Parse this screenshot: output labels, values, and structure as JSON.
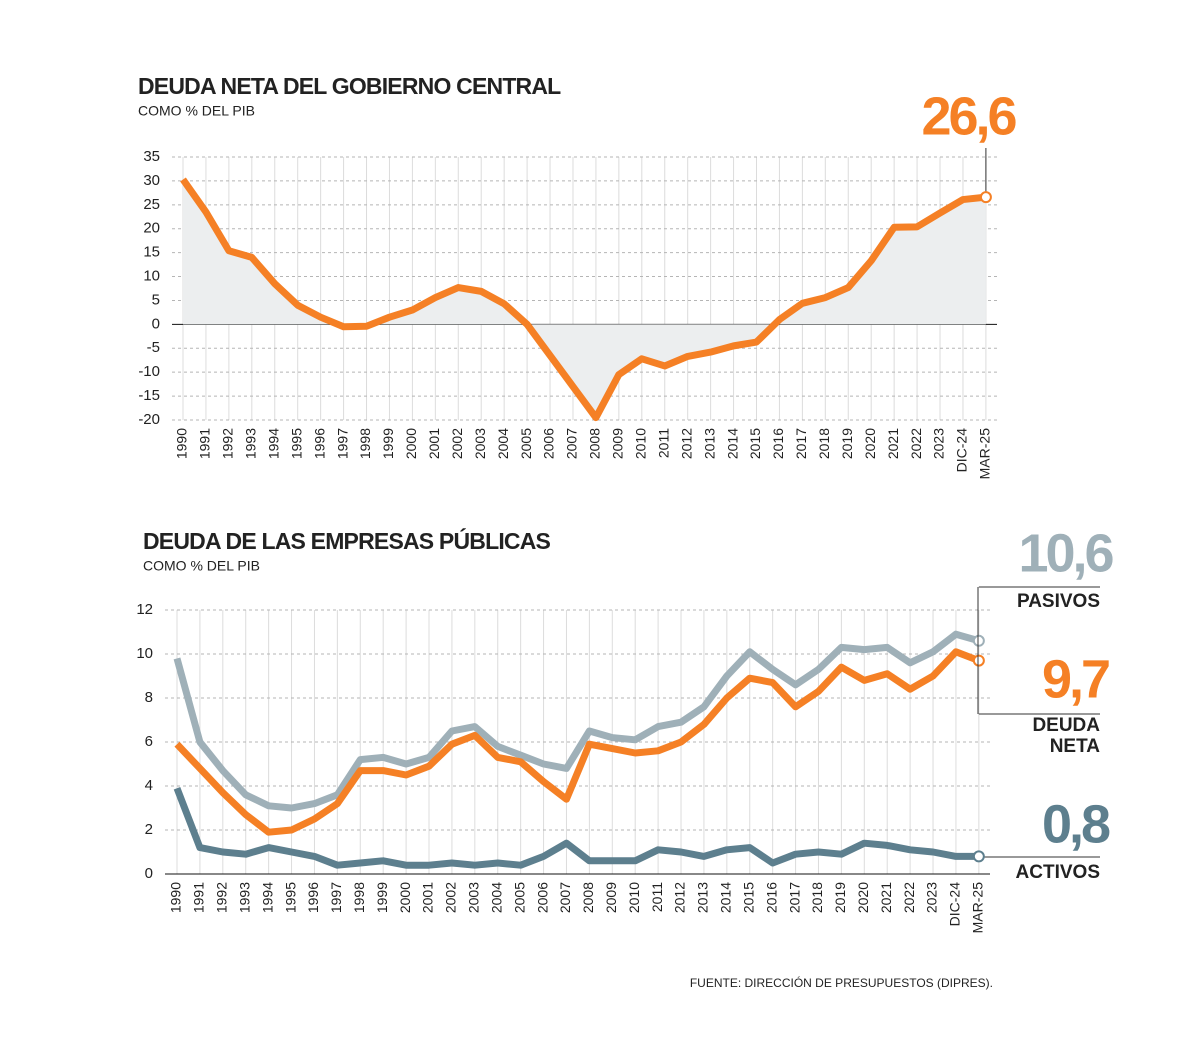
{
  "charts": [
    {
      "chart_data": {
        "type": "line",
        "title": "DEUDA NETA DEL GOBIERNO CENTRAL",
        "subtitle": "COMO % DEL PIB",
        "categories": [
          "1990",
          "1991",
          "1992",
          "1993",
          "1994",
          "1995",
          "1996",
          "1997",
          "1998",
          "1999",
          "2000",
          "2001",
          "2002",
          "2003",
          "2004",
          "2005",
          "2006",
          "2007",
          "2008",
          "2009",
          "2010",
          "2011",
          "2012",
          "2013",
          "2014",
          "2015",
          "2016",
          "2017",
          "2018",
          "2019",
          "2020",
          "2021",
          "2022",
          "2023",
          "DIC-24",
          "MAR-25"
        ],
        "values": [
          30.3,
          23.5,
          15.4,
          14,
          8.5,
          4,
          1.5,
          -0.5,
          -0.4,
          1.5,
          3,
          5.6,
          7.7,
          6.9,
          4.3,
          0,
          -6.5,
          -13,
          -19.5,
          -10.5,
          -7.2,
          -8.7,
          -6.7,
          -5.8,
          -4.5,
          -3.7,
          1,
          4.4,
          5.6,
          7.7,
          13.3,
          20.3,
          20.4,
          23.3,
          26.1,
          26.6
        ],
        "value_labels": [
          null,
          null,
          null,
          null,
          null,
          null,
          null,
          null,
          null,
          null,
          null,
          null,
          null,
          null,
          null,
          null,
          null,
          null,
          null,
          null,
          null,
          null,
          null,
          null,
          null,
          null,
          null,
          null,
          null,
          null,
          null,
          null,
          null,
          null,
          null,
          "26,6"
        ],
        "color": "#f58025",
        "area_color": "#eceeef",
        "ylim": [
          -20,
          35
        ],
        "yticks": [
          -20,
          -15,
          -10,
          -5,
          0,
          5,
          10,
          15,
          20,
          25,
          30,
          35
        ],
        "grid": true
      }
    },
    {
      "chart_data": {
        "type": "line",
        "title": "DEUDA DE LAS EMPRESAS PÚBLICAS",
        "subtitle": "COMO % DEL PIB",
        "categories": [
          "1990",
          "1991",
          "1992",
          "1993",
          "1994",
          "1995",
          "1996",
          "1997",
          "1998",
          "1999",
          "2000",
          "2001",
          "2002",
          "2003",
          "2004",
          "2005",
          "2006",
          "2007",
          "2008",
          "2009",
          "2010",
          "2011",
          "2012",
          "2013",
          "2014",
          "2015",
          "2016",
          "2017",
          "2018",
          "2019",
          "2020",
          "2021",
          "2022",
          "2023",
          "DIC-24",
          "MAR-25"
        ],
        "series": [
          {
            "name": "PASIVOS",
            "color": "#9fb0b8",
            "values": [
              9.8,
              6.0,
              4.7,
              3.6,
              3.1,
              3.0,
              3.2,
              3.6,
              5.2,
              5.3,
              5.0,
              5.3,
              6.5,
              6.7,
              5.8,
              5.4,
              5.0,
              4.8,
              6.5,
              6.2,
              6.1,
              6.7,
              6.9,
              7.6,
              9.0,
              10.1,
              9.3,
              8.6,
              9.3,
              10.3,
              10.2,
              10.3,
              9.6,
              10.1,
              10.9,
              10.6
            ],
            "value_labels": [
              null,
              null,
              null,
              null,
              null,
              null,
              null,
              null,
              null,
              null,
              null,
              null,
              null,
              null,
              null,
              null,
              null,
              null,
              null,
              null,
              null,
              null,
              null,
              null,
              null,
              null,
              null,
              null,
              null,
              null,
              null,
              null,
              null,
              null,
              null,
              "10,6"
            ]
          },
          {
            "name": "DEUDA NETA",
            "color": "#f58025",
            "values": [
              5.9,
              4.8,
              3.7,
              2.7,
              1.9,
              2.0,
              2.5,
              3.2,
              4.7,
              4.7,
              4.5,
              4.9,
              5.9,
              6.3,
              5.3,
              5.1,
              4.2,
              3.4,
              5.9,
              5.7,
              5.5,
              5.6,
              6.0,
              6.8,
              8.0,
              8.9,
              8.7,
              7.6,
              8.3,
              9.4,
              8.8,
              9.1,
              8.4,
              9.0,
              10.1,
              9.7
            ],
            "value_labels": [
              null,
              null,
              null,
              null,
              null,
              null,
              null,
              null,
              null,
              null,
              null,
              null,
              null,
              null,
              null,
              null,
              null,
              null,
              null,
              null,
              null,
              null,
              null,
              null,
              null,
              null,
              null,
              null,
              null,
              null,
              null,
              null,
              null,
              null,
              null,
              "9,7"
            ]
          },
          {
            "name": "ACTIVOS",
            "color": "#5d7f8e",
            "values": [
              3.9,
              1.2,
              1.0,
              0.9,
              1.2,
              1.0,
              0.8,
              0.4,
              0.5,
              0.6,
              0.4,
              0.4,
              0.5,
              0.4,
              0.5,
              0.4,
              0.8,
              1.4,
              0.6,
              0.6,
              0.6,
              1.1,
              1.0,
              0.8,
              1.1,
              1.2,
              0.5,
              0.9,
              1.0,
              0.9,
              1.4,
              1.3,
              1.1,
              1.0,
              0.8,
              0.8
            ],
            "value_labels": [
              null,
              null,
              null,
              null,
              null,
              null,
              null,
              null,
              null,
              null,
              null,
              null,
              null,
              null,
              null,
              null,
              null,
              null,
              null,
              null,
              null,
              null,
              null,
              null,
              null,
              null,
              null,
              null,
              null,
              null,
              null,
              null,
              null,
              null,
              null,
              "0,8"
            ]
          }
        ],
        "ylim": [
          0,
          12
        ],
        "yticks": [
          0,
          2,
          4,
          6,
          8,
          10,
          12
        ],
        "grid": true
      }
    }
  ],
  "source": "FUENTE: DIRECCIÓN DE PRESUPUESTOS (DIPRES)."
}
